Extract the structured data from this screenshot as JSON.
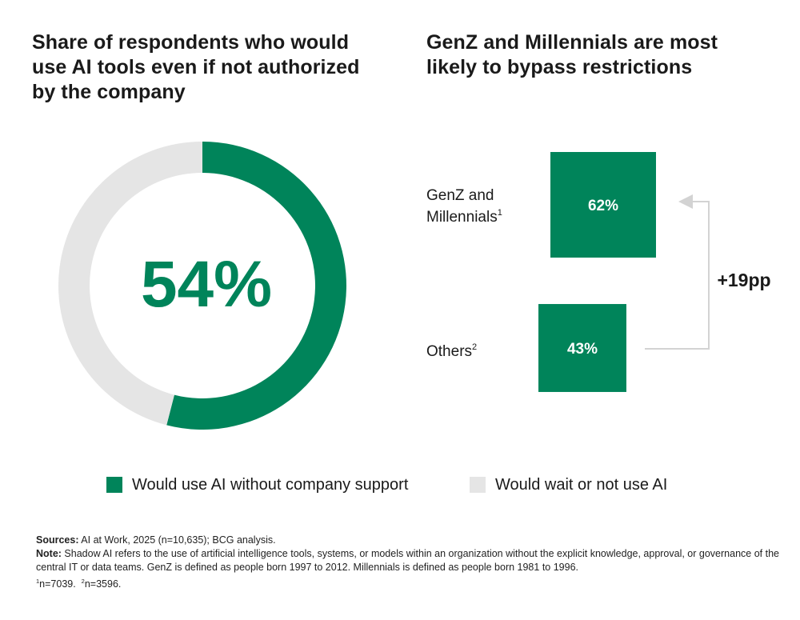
{
  "left_title_lines": [
    "Share of respondents who would",
    "use AI tools even if not authorized",
    "by the company"
  ],
  "right_title_lines": [
    "GenZ and Millennials are most",
    "likely to bypass restrictions"
  ],
  "colors": {
    "green": "#00845A",
    "light_gray": "#E5E5E5",
    "arrow_gray": "#D3D3D3"
  },
  "chart_data": [
    {
      "type": "pie",
      "variant": "donut",
      "center_label": "54%",
      "slices": [
        {
          "label": "Would use AI without company support",
          "value": 54,
          "color": "#00845A"
        },
        {
          "label": "Would wait or not use AI",
          "value": 46,
          "color": "#E5E5E5"
        }
      ]
    },
    {
      "type": "bar",
      "categories": [
        "GenZ and Millennials",
        "Others"
      ],
      "category_superscripts": [
        "1",
        "2"
      ],
      "values": [
        62,
        43
      ],
      "value_labels": [
        "62%",
        "43%"
      ],
      "difference_label": "+19pp"
    }
  ],
  "legend": [
    {
      "label": "Would use AI without company support",
      "color": "#00845A"
    },
    {
      "label": "Would wait or not use AI",
      "color": "#E5E5E5"
    }
  ],
  "footer": {
    "sources_label": "Sources:",
    "sources_text": " AI at Work, 2025 (n=10,635); BCG analysis.",
    "note_label": "Note:",
    "note_text": " Shadow AI refers to the use of artificial intelligence tools, systems, or models within an organization without the explicit knowledge, approval, or governance of the central IT or data teams. GenZ is defined as people born 1997 to 2012. Millennials is defined as people born 1981 to 1996.",
    "fn1_mark": "1",
    "fn1_text": "n=7039.",
    "fn2_mark": "2",
    "fn2_text": "n=3596."
  }
}
